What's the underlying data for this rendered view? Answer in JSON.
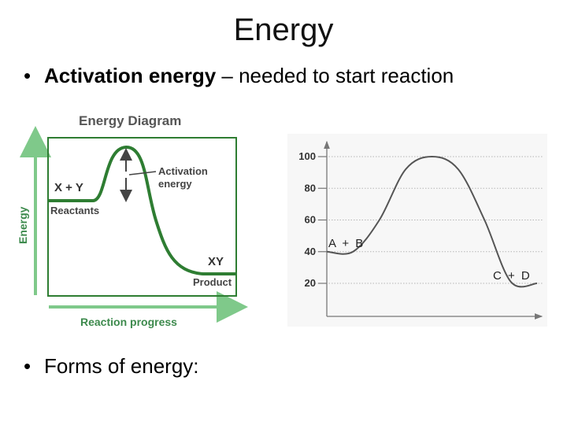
{
  "slide": {
    "title": "Energy",
    "bullets": [
      {
        "bold": "Activation energy",
        "text": " – needed to start reaction"
      },
      {
        "bold": "",
        "text": "Forms of energy:"
      }
    ]
  },
  "left_diagram": {
    "title": "Energy Diagram",
    "y_axis_label": "Energy",
    "x_axis_label": "Reaction progress",
    "reactant_formula": "X + Y",
    "reactant_label": "Reactants",
    "product_formula": "XY",
    "product_label": "Product",
    "annotation_line1": "Activation",
    "annotation_line2": "energy",
    "colors": {
      "curve": "#2e7d32",
      "axis": "#7fc98a",
      "frame": "#2e7d32"
    }
  },
  "right_diagram": {
    "y_ticks": [
      "100",
      "80",
      "60",
      "40",
      "20"
    ],
    "reactant_label": "A + B",
    "product_label": "C + D"
  },
  "chart_data": {
    "type": "line",
    "x": [
      0,
      1,
      2,
      3,
      4,
      5,
      6,
      7,
      8
    ],
    "y": [
      40,
      40,
      60,
      92,
      100,
      92,
      60,
      21,
      20
    ],
    "yticks": [
      20,
      40,
      60,
      80,
      100
    ],
    "annotations": [
      "A + B",
      "C + D"
    ],
    "grid": true,
    "title": "",
    "xlabel": "",
    "ylabel": ""
  }
}
